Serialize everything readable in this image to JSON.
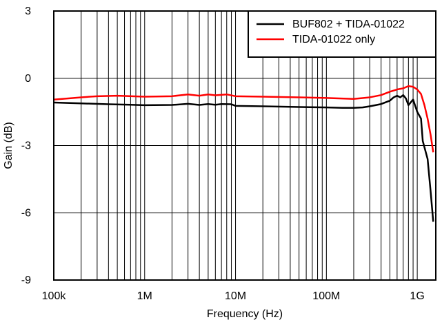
{
  "chart_data": {
    "type": "line",
    "title": "",
    "xlabel": "Frequency (Hz)",
    "ylabel": "Gain (dB)",
    "xscale": "log",
    "xlim": [
      100000,
      1600000000
    ],
    "ylim": [
      -9,
      3
    ],
    "grid": true,
    "legend_position": "top-right",
    "x_ticks": [
      {
        "value": 100000,
        "label": "100k"
      },
      {
        "value": 1000000,
        "label": "1M"
      },
      {
        "value": 10000000,
        "label": "10M"
      },
      {
        "value": 100000000,
        "label": "100M"
      },
      {
        "value": 1000000000,
        "label": "1G"
      }
    ],
    "y_ticks": [
      {
        "value": 3,
        "label": "3"
      },
      {
        "value": 0,
        "label": "0"
      },
      {
        "value": -3,
        "label": "-3"
      },
      {
        "value": -6,
        "label": "-6"
      },
      {
        "value": -9,
        "label": "-9"
      }
    ],
    "series": [
      {
        "name": "BUF802 + TIDA-01022",
        "color": "#000000",
        "points": [
          [
            100000,
            -1.08
          ],
          [
            200000,
            -1.12
          ],
          [
            400000,
            -1.16
          ],
          [
            700000,
            -1.18
          ],
          [
            1000000,
            -1.2
          ],
          [
            2000000,
            -1.19
          ],
          [
            3000000,
            -1.14
          ],
          [
            4000000,
            -1.19
          ],
          [
            5000000,
            -1.15
          ],
          [
            6000000,
            -1.18
          ],
          [
            7000000,
            -1.15
          ],
          [
            9000000,
            -1.16
          ],
          [
            10000000,
            -1.23
          ],
          [
            20000000,
            -1.25
          ],
          [
            50000000,
            -1.28
          ],
          [
            100000000,
            -1.3
          ],
          [
            150000000,
            -1.32
          ],
          [
            200000000,
            -1.32
          ],
          [
            250000000,
            -1.3
          ],
          [
            300000000,
            -1.25
          ],
          [
            400000000,
            -1.15
          ],
          [
            500000000,
            -1.0
          ],
          [
            550000000,
            -0.85
          ],
          [
            600000000,
            -0.78
          ],
          [
            650000000,
            -0.85
          ],
          [
            700000000,
            -0.75
          ],
          [
            750000000,
            -0.9
          ],
          [
            800000000,
            -1.2
          ],
          [
            900000000,
            -0.95
          ],
          [
            1000000000,
            -1.5
          ],
          [
            1100000000,
            -1.8
          ],
          [
            1150000000,
            -2.8
          ],
          [
            1300000000,
            -3.6
          ],
          [
            1400000000,
            -5.0
          ],
          [
            1500000000,
            -6.4
          ]
        ]
      },
      {
        "name": "TIDA-01022 only",
        "color": "#ff0000",
        "points": [
          [
            100000,
            -0.95
          ],
          [
            200000,
            -0.85
          ],
          [
            300000,
            -0.8
          ],
          [
            500000,
            -0.78
          ],
          [
            1000000,
            -0.82
          ],
          [
            2000000,
            -0.8
          ],
          [
            3000000,
            -0.72
          ],
          [
            4000000,
            -0.78
          ],
          [
            5000000,
            -0.72
          ],
          [
            6000000,
            -0.76
          ],
          [
            8000000,
            -0.72
          ],
          [
            10000000,
            -0.8
          ],
          [
            20000000,
            -0.82
          ],
          [
            50000000,
            -0.85
          ],
          [
            100000000,
            -0.88
          ],
          [
            200000000,
            -0.92
          ],
          [
            300000000,
            -0.85
          ],
          [
            400000000,
            -0.75
          ],
          [
            500000000,
            -0.6
          ],
          [
            600000000,
            -0.5
          ],
          [
            700000000,
            -0.45
          ],
          [
            800000000,
            -0.35
          ],
          [
            900000000,
            -0.38
          ],
          [
            1000000000,
            -0.5
          ],
          [
            1100000000,
            -0.7
          ],
          [
            1200000000,
            -1.2
          ],
          [
            1300000000,
            -1.8
          ],
          [
            1400000000,
            -2.5
          ],
          [
            1500000000,
            -3.3
          ]
        ]
      }
    ]
  }
}
